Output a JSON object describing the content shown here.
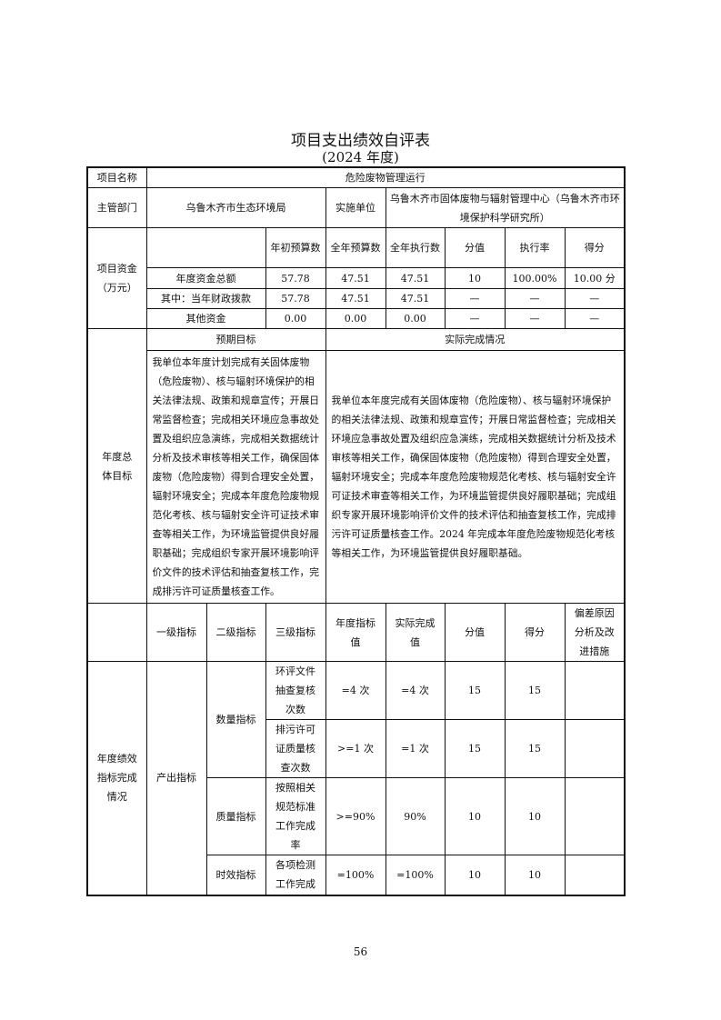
{
  "title": "项目支出绩效自评表",
  "subtitle": "(2024 年度)",
  "project_name": {
    "label": "项目名称",
    "value": "危险废物管理运行"
  },
  "department": {
    "label": "主管部门",
    "value": "乌鲁木齐市生态环境局",
    "impl_label": "实施单位",
    "impl_value": "乌鲁木齐市固体废物与辐射管理中心（乌鲁木齐市环境保护科学研究所）"
  },
  "funds": {
    "label": "项目资金（万元）",
    "headers": [
      "年初预算数",
      "全年预算数",
      "全年执行数",
      "分值",
      "执行率",
      "得分"
    ],
    "rows": [
      {
        "name": "年度资金总额",
        "cells": [
          "57.78",
          "47.51",
          "47.51",
          "10",
          "100.00%",
          "10.00 分"
        ]
      },
      {
        "name": "其中：当年财政拨款",
        "cells": [
          "57.78",
          "47.51",
          "47.51",
          "—",
          "—",
          "—"
        ]
      },
      {
        "name": "其他资金",
        "cells": [
          "0.00",
          "0.00",
          "0.00",
          "—",
          "—",
          "—"
        ]
      }
    ]
  },
  "goals": {
    "label": "年度总体目标",
    "expected_label": "预期目标",
    "actual_label": "实际完成情况",
    "expected": "我单位本年度计划完成有关固体废物（危险废物）、核与辐射环境保护的相关法律法规、政策和规章宣传；开展日常监督检查；完成相关环境应急事故处置及组织应急演练，完成相关数据统计分析及技术审核等相关工作，确保固体废物（危险废物）得到合理安全处置，辐射环境安全；完成本年度危险废物规范化考核、核与辐射安全许可证技术审查等相关工作，为环境监管提供良好履职基础；完成组织专家开展环境影响评价文件的技术评估和抽查复核工作，完成排污许可证质量核查工作。",
    "actual": "我单位本年度完成有关固体废物（危险废物）、核与辐射环境保护的相关法律法规、政策和规章宣传；开展日常监督检查；完成相关环境应急事故处置及组织应急演练，完成相关数据统计分析及技术审核等相关工作，确保固体废物（危险废物）得到合理安全处置，辐射环境安全；完成本年度危险废物规范化考核、核与辐射安全许可证技术审查等相关工作，为环境监管提供良好履职基础；完成组织专家开展环境影响评价文件的技术评估和抽查复核工作，完成排污许可证质量核查工作。2024 年完成本年度危险废物规范化考核等相关工作，为环境监管提供良好履职基础。"
  },
  "indicators": {
    "label": "年度绩效指标完成情况",
    "headers": [
      "一级指标",
      "二级指标",
      "三级指标",
      "年度指标值",
      "实际完成值",
      "分值",
      "得分",
      "偏差原因分析及改进措施"
    ],
    "level1": "产出指标",
    "groups": [
      {
        "level2": "数量指标",
        "rows": [
          {
            "level3": "环评文件抽查复核次数",
            "target": "=4 次",
            "actual": "=4 次",
            "score_value": "15",
            "score": "15",
            "deviation": ""
          },
          {
            "level3": "排污许可证质量核查次数",
            "target": ">=1 次",
            "actual": "=1 次",
            "score_value": "15",
            "score": "15",
            "deviation": ""
          }
        ]
      },
      {
        "level2": "质量指标",
        "rows": [
          {
            "level3": "按照相关规范标准工作完成率",
            "target": ">=90%",
            "actual": "90%",
            "score_value": "10",
            "score": "10",
            "deviation": ""
          }
        ]
      },
      {
        "level2": "时效指标",
        "rows": [
          {
            "level3": "各项检测工作完成",
            "target": "=100%",
            "actual": "=100%",
            "score_value": "10",
            "score": "10",
            "deviation": ""
          }
        ]
      }
    ]
  },
  "page_number": "56"
}
